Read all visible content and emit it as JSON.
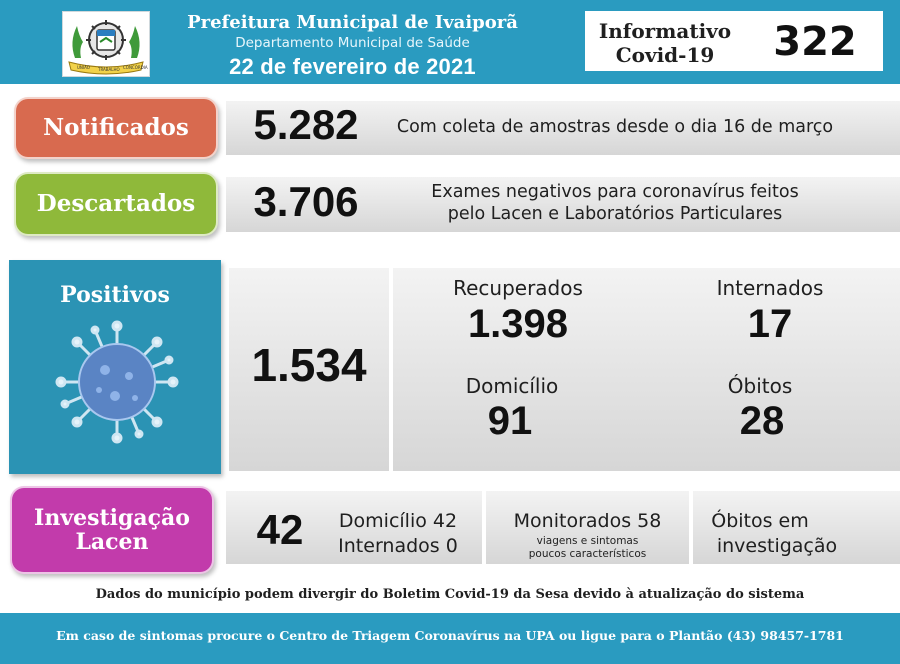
{
  "header": {
    "title": "Prefeitura Municipal de Ivaiporã",
    "subtitle": "Departamento Municipal de Saúde",
    "date": "22 de fevereiro de 2021",
    "info_label_line1": "Informativo",
    "info_label_line2": "Covid-19",
    "edition_number": "322"
  },
  "notificados": {
    "label": "Notificados",
    "value": "5.282",
    "description": "Com coleta de amostras desde o dia 16 de março",
    "color": "#d86a4f"
  },
  "descartados": {
    "label": "Descartados",
    "value": "3.706",
    "description_line1": "Exames negativos para coronavírus feitos",
    "description_line2": "pelo Lacen e Laboratórios Particulares",
    "color": "#8fb93a"
  },
  "positivos": {
    "label": "Positivos",
    "value": "1.534",
    "color": "#2b93b4",
    "recuperados_label": "Recuperados",
    "recuperados_value": "1.398",
    "internados_label": "Internados",
    "internados_value": "17",
    "domicilio_label": "Domicílio",
    "domicilio_value": "91",
    "obitos_label": "Óbitos",
    "obitos_value": "28"
  },
  "investigacao": {
    "label_line1": "Investigação",
    "label_line2": "Lacen",
    "color": "#c23bab",
    "value": "42",
    "domicilio": "Domicílio 42",
    "internados": "Internados 0",
    "monitorados": "Monitorados 58",
    "monitorados_note_line1": "viagens e sintomas",
    "monitorados_note_line2": "poucos característicos",
    "obitos_line1": "Óbitos em",
    "obitos_line2": "investigação"
  },
  "disclaimer": "Dados do município podem divergir do Boletim Covid-19 da Sesa devido à atualização do sistema",
  "footer": "Em caso de sintomas procure o Centro de Triagem Coronavírus na UPA ou ligue para o Plantão (43) 98457-1781",
  "logo": {
    "ribbon_text_left": "UNIÃO",
    "ribbon_text_center": "TRABALHO",
    "ribbon_text_right": "CONCÓRDIA"
  },
  "icons": {
    "logo": "municipal-coat-of-arms",
    "virus": "coronavirus-icon"
  }
}
